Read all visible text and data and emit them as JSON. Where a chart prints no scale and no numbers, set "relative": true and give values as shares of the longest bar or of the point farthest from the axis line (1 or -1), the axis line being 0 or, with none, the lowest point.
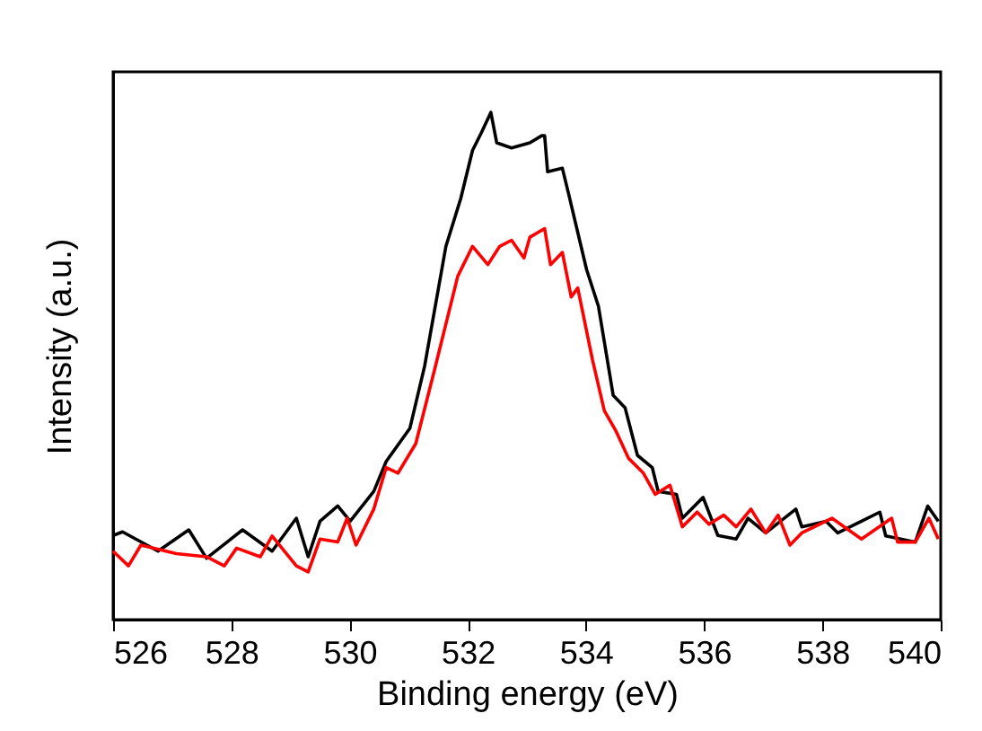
{
  "chart_data": {
    "type": "line",
    "xlabel": "Binding energy (eV)",
    "ylabel": "Intensity (a.u.)",
    "relative": true,
    "xlim": [
      526,
      540
    ],
    "xticks": [
      526,
      528,
      530,
      532,
      534,
      536,
      538,
      540
    ],
    "grid": false,
    "marker": "none",
    "line_style": "solid",
    "series": [
      {
        "color": "#000000",
        "x": [
          526.0,
          526.16,
          526.76,
          527.28,
          527.58,
          528.19,
          528.69,
          529.1,
          529.3,
          529.5,
          529.8,
          530.01,
          530.41,
          530.62,
          531.02,
          531.27,
          531.63,
          531.88,
          532.08,
          532.23,
          532.39,
          532.49,
          532.74,
          533.05,
          533.25,
          533.3,
          533.35,
          533.6,
          533.7,
          534.01,
          534.21,
          534.46,
          534.66,
          534.87,
          535.12,
          535.22,
          535.53,
          535.63,
          535.98,
          536.23,
          536.54,
          536.74,
          537.04,
          537.55,
          537.65,
          538.06,
          538.26,
          538.66,
          538.97,
          539.07,
          539.57,
          539.78,
          539.96
        ],
        "values": [
          0.166,
          0.173,
          0.135,
          0.177,
          0.121,
          0.177,
          0.135,
          0.2,
          0.124,
          0.194,
          0.224,
          0.194,
          0.253,
          0.312,
          0.377,
          0.5,
          0.736,
          0.83,
          0.925,
          0.96,
          1.0,
          0.94,
          0.93,
          0.94,
          0.954,
          0.954,
          0.883,
          0.89,
          0.842,
          0.69,
          0.618,
          0.442,
          0.418,
          0.324,
          0.3,
          0.253,
          0.247,
          0.2,
          0.241,
          0.166,
          0.159,
          0.2,
          0.171,
          0.218,
          0.183,
          0.194,
          0.171,
          0.194,
          0.212,
          0.165,
          0.153,
          0.224,
          0.194
        ]
      },
      {
        "color": "#ff0000",
        "x": [
          526.0,
          526.26,
          526.47,
          527.07,
          527.58,
          527.88,
          528.09,
          528.49,
          528.69,
          529.1,
          529.3,
          529.5,
          529.8,
          529.96,
          530.11,
          530.41,
          530.62,
          530.82,
          531.12,
          531.43,
          531.63,
          531.83,
          532.08,
          532.34,
          532.54,
          532.74,
          532.95,
          533.05,
          533.3,
          533.4,
          533.6,
          533.75,
          533.86,
          534.11,
          534.31,
          534.51,
          534.72,
          534.97,
          535.17,
          535.42,
          535.63,
          535.88,
          536.08,
          536.33,
          536.54,
          536.79,
          537.04,
          537.25,
          537.45,
          537.65,
          538.16,
          538.66,
          539.17,
          539.27,
          539.57,
          539.8,
          539.96
        ],
        "values": [
          0.135,
          0.106,
          0.147,
          0.13,
          0.124,
          0.106,
          0.141,
          0.124,
          0.165,
          0.106,
          0.094,
          0.159,
          0.153,
          0.2,
          0.147,
          0.218,
          0.3,
          0.289,
          0.347,
          0.489,
          0.583,
          0.677,
          0.736,
          0.7,
          0.736,
          0.748,
          0.713,
          0.754,
          0.771,
          0.7,
          0.724,
          0.636,
          0.654,
          0.512,
          0.412,
          0.371,
          0.318,
          0.289,
          0.247,
          0.265,
          0.183,
          0.212,
          0.188,
          0.206,
          0.183,
          0.218,
          0.171,
          0.206,
          0.147,
          0.171,
          0.2,
          0.159,
          0.2,
          0.153,
          0.153,
          0.2,
          0.159
        ]
      }
    ]
  }
}
